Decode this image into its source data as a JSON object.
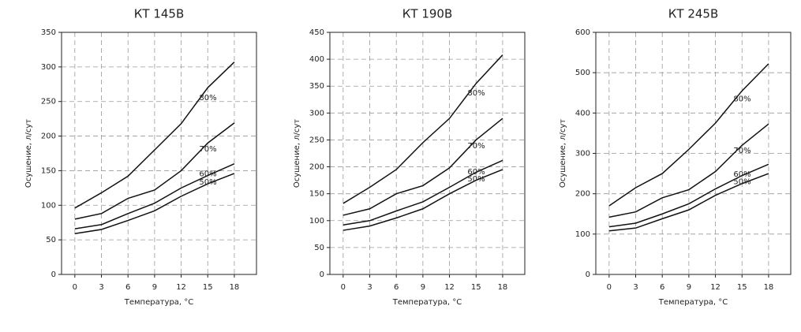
{
  "chart_data": [
    {
      "type": "line",
      "title": "КТ  145В",
      "x_label": "Температура, °С",
      "y_label": "Осушение, л/сут",
      "x": [
        0,
        3,
        6,
        9,
        12,
        15,
        18
      ],
      "xlim": [
        -1.5,
        20.5
      ],
      "xticks": [
        0,
        3,
        6,
        9,
        12,
        15,
        18
      ],
      "ylim": [
        0,
        350
      ],
      "yticks": [
        0,
        50,
        100,
        150,
        200,
        250,
        300,
        350
      ],
      "grid": true,
      "series": [
        {
          "name": "80%",
          "color": "#111111",
          "values": [
            96,
            118,
            142,
            180,
            218,
            270,
            307
          ]
        },
        {
          "name": "70%",
          "color": "#111111",
          "values": [
            80,
            88,
            110,
            122,
            150,
            190,
            219
          ]
        },
        {
          "name": "60%",
          "color": "#111111",
          "values": [
            66,
            72,
            88,
            103,
            125,
            143,
            160
          ]
        },
        {
          "name": "50%",
          "color": "#111111",
          "values": [
            59,
            65,
            78,
            92,
            113,
            131,
            146
          ]
        }
      ]
    },
    {
      "type": "line",
      "title": "КТ  190В",
      "x_label": "Температура, °С",
      "y_label": "Осушение, л/сут",
      "x": [
        0,
        3,
        6,
        9,
        12,
        15,
        18
      ],
      "xlim": [
        -1.5,
        20.5
      ],
      "xticks": [
        0,
        3,
        6,
        9,
        12,
        15,
        18
      ],
      "ylim": [
        0,
        450
      ],
      "yticks": [
        0,
        50,
        100,
        150,
        200,
        250,
        300,
        350,
        400,
        450
      ],
      "grid": true,
      "series": [
        {
          "name": "80%",
          "color": "#111111",
          "values": [
            132,
            162,
            195,
            245,
            290,
            355,
            408
          ]
        },
        {
          "name": "70%",
          "color": "#111111",
          "values": [
            110,
            122,
            150,
            165,
            198,
            250,
            290
          ]
        },
        {
          "name": "60%",
          "color": "#111111",
          "values": [
            92,
            100,
            118,
            135,
            162,
            190,
            212
          ]
        },
        {
          "name": "50%",
          "color": "#111111",
          "values": [
            82,
            90,
            105,
            122,
            150,
            175,
            195
          ]
        }
      ]
    },
    {
      "type": "line",
      "title": "КТ  245В",
      "x_label": "Температура, °С",
      "y_label": "Осушение, л/сут",
      "x": [
        0,
        3,
        6,
        9,
        12,
        15,
        18
      ],
      "xlim": [
        -1.5,
        20.5
      ],
      "xticks": [
        0,
        3,
        6,
        9,
        12,
        15,
        18
      ],
      "ylim": [
        0,
        600
      ],
      "yticks": [
        0,
        100,
        200,
        300,
        400,
        500,
        600
      ],
      "grid": true,
      "series": [
        {
          "name": "80%",
          "color": "#111111",
          "values": [
            170,
            215,
            250,
            310,
            375,
            455,
            522
          ]
        },
        {
          "name": "70%",
          "color": "#111111",
          "values": [
            142,
            155,
            190,
            210,
            255,
            320,
            373
          ]
        },
        {
          "name": "60%",
          "color": "#111111",
          "values": [
            118,
            127,
            150,
            175,
            212,
            245,
            273
          ]
        },
        {
          "name": "50%",
          "color": "#111111",
          "values": [
            108,
            115,
            138,
            160,
            196,
            225,
            250
          ]
        }
      ]
    }
  ]
}
